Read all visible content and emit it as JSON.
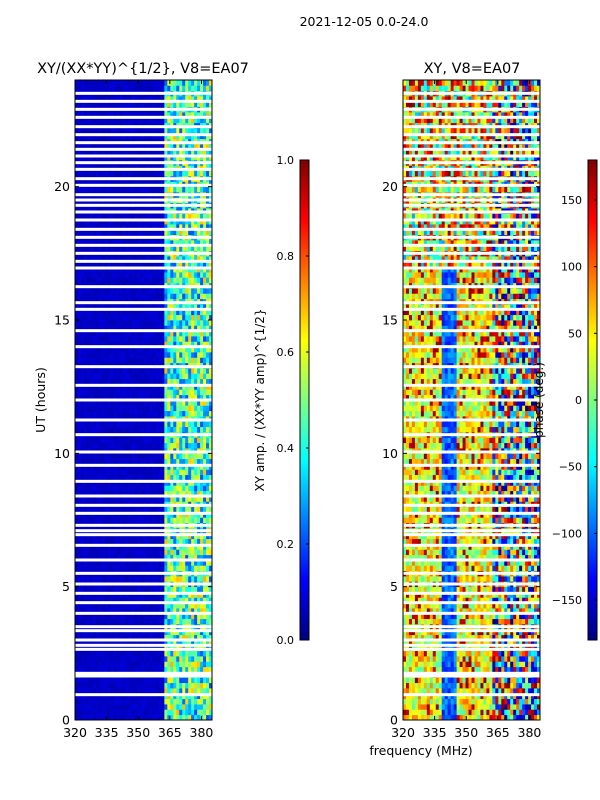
{
  "page_title": "2021-12-05 0.0-24.0",
  "x_axis_label": "frequency (MHz)",
  "colors": {
    "jet": [
      "#00007f",
      "#0000ff",
      "#007fff",
      "#00ffff",
      "#7fff7f",
      "#ffff00",
      "#ff7f00",
      "#ff0000",
      "#7f0000"
    ],
    "gap": "#ffffff",
    "frame": "#000000"
  },
  "flagged_hours": [
    0.95,
    1.65,
    1.75,
    2.65,
    2.8,
    3.0,
    3.35,
    3.5,
    4.0,
    4.4,
    4.75,
    5.1,
    5.5,
    6.0,
    6.55,
    6.95,
    7.1,
    7.3,
    7.75,
    8.05,
    8.4,
    8.95,
    9.55,
    10.05,
    10.7,
    11.25,
    12.0,
    12.55,
    13.25,
    14.0,
    14.6,
    15.4,
    15.65,
    16.25,
    16.95,
    17.2,
    17.5,
    17.8,
    18.1,
    18.4,
    18.75,
    19.05,
    19.3,
    19.5,
    19.7,
    20.05,
    20.3,
    20.65,
    20.9,
    21.15,
    21.4,
    21.65,
    21.95,
    22.25,
    22.6,
    22.9,
    23.2,
    23.5
  ],
  "chart_data": [
    {
      "type": "heatmap",
      "title": "XY/(XX*YY)^{1/2}, V8=EA07",
      "xlabel": "",
      "ylabel": "UT (hours)",
      "xlim": [
        320,
        385
      ],
      "ylim": [
        0,
        24
      ],
      "xticks": [
        320,
        335,
        350,
        365,
        380
      ],
      "xtick_labels": [
        "320",
        "335",
        "350",
        "365",
        "380"
      ],
      "yticks": [
        0,
        5,
        10,
        15,
        20
      ],
      "ytick_labels": [
        "0",
        "5",
        "10",
        "15",
        "20"
      ],
      "colorbar": {
        "label": "XY amp. / (XX*YY amp)^{1/2}",
        "range": [
          0.0,
          1.0
        ],
        "ticks": [
          0.0,
          0.2,
          0.4,
          0.6,
          0.8,
          1.0
        ],
        "tick_labels": [
          "0.0",
          "0.2",
          "0.4",
          "0.6",
          "0.8",
          "1.0"
        ]
      },
      "description_values": {
        "low_band_typical": 0.05,
        "high_band_range": [
          0.2,
          0.6
        ],
        "high_band_start_mhz": 362
      }
    },
    {
      "type": "heatmap",
      "title": "XY, V8=EA07",
      "xlabel": "frequency (MHz)",
      "ylabel": "",
      "xlim": [
        320,
        385
      ],
      "ylim": [
        0,
        24
      ],
      "xticks": [
        320,
        335,
        350,
        365,
        380
      ],
      "xtick_labels": [
        "320",
        "335",
        "350",
        "365",
        "380"
      ],
      "yticks": [
        0,
        5,
        10,
        15,
        20
      ],
      "ytick_labels": [
        "0",
        "5",
        "10",
        "15",
        "20"
      ],
      "colorbar": {
        "label": "phase (deg.)",
        "range": [
          -180,
          180
        ],
        "ticks": [
          -150,
          -100,
          -50,
          0,
          50,
          100,
          150
        ],
        "tick_labels": [
          "−150",
          "−100",
          "−50",
          "0",
          "50",
          "100",
          "150"
        ]
      },
      "description_values": {
        "phase_range_deg": [
          -180,
          180
        ],
        "dominant_phase_deg": 40
      }
    }
  ]
}
